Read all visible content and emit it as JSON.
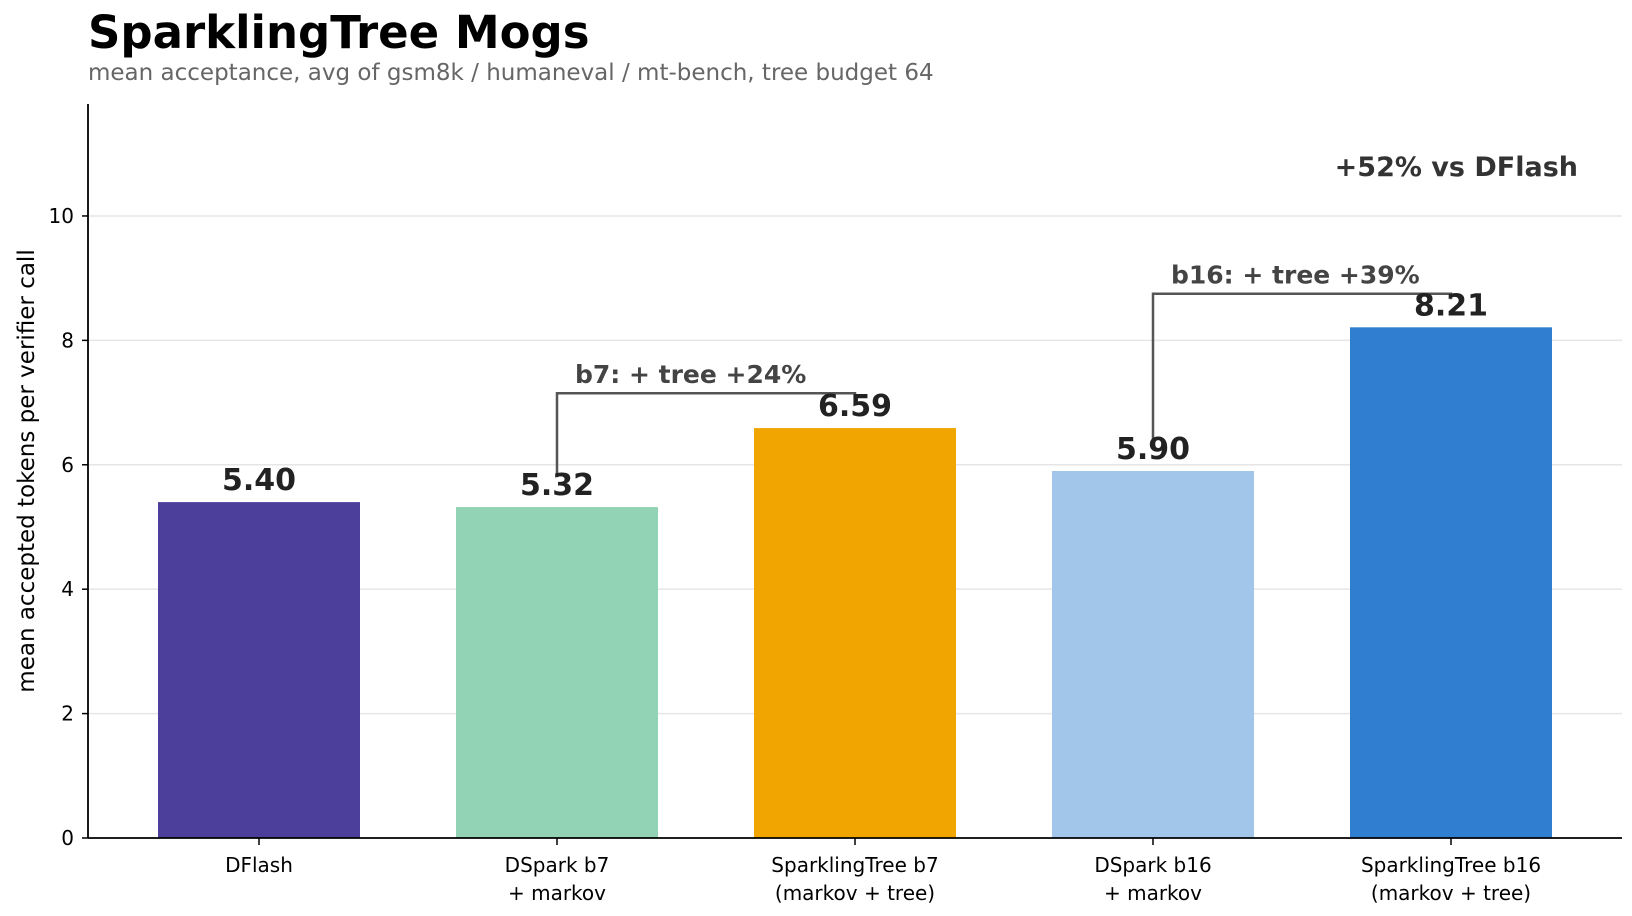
{
  "chart_data": {
    "type": "bar",
    "title": "SparklingTree Mogs",
    "subtitle": "mean acceptance, avg of gsm8k / humaneval / mt-bench, tree budget 64",
    "xlabel": "",
    "ylabel": "mean accepted tokens per verifier call",
    "ylim": [
      0,
      11.8
    ],
    "yticks": [
      0,
      2,
      4,
      6,
      8,
      10
    ],
    "grid": "y",
    "categories": [
      [
        "DFlash"
      ],
      [
        "DSpark b7",
        "+ markov"
      ],
      [
        "SparklingTree b7",
        "(markov + tree)"
      ],
      [
        "DSpark b16",
        "+ markov"
      ],
      [
        "SparklingTree b16",
        "(markov + tree)"
      ]
    ],
    "values": [
      5.4,
      5.32,
      6.59,
      5.9,
      8.21
    ],
    "value_labels": [
      "5.40",
      "5.32",
      "6.59",
      "5.90",
      "8.21"
    ],
    "colors": [
      "#4c3f9c",
      "#92d3b5",
      "#f0a500",
      "#a2c6ea",
      "#2f7ecf"
    ],
    "annotations": [
      {
        "label": "b7: + tree   +24%",
        "from": 1,
        "to": 2,
        "level": 7.15
      },
      {
        "label": "b16: + tree   +39%",
        "from": 3,
        "to": 4,
        "level": 8.75
      }
    ],
    "headline": "+52% vs DFlash"
  }
}
